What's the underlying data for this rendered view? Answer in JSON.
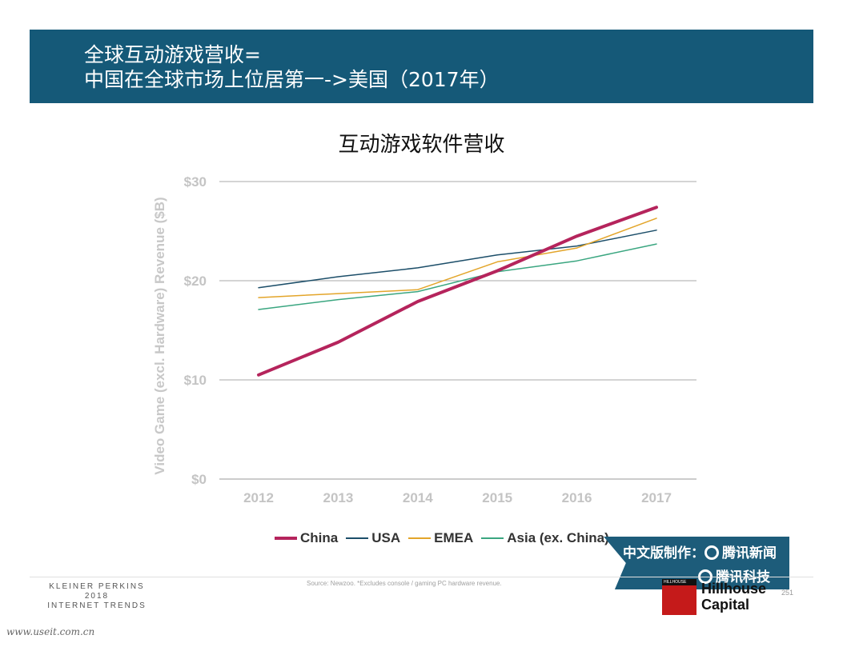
{
  "slide": {
    "title_line1": "全球互动游戏营收=",
    "title_line2": "中国在全球市场上位居第一->美国（2017年）",
    "source": "Source: Newzoo. *Excludes console / gaming PC hardware revenue.",
    "page_number": "251",
    "site": "www.useit.com.cn",
    "kp_logo": [
      "KLEINER PERKINS",
      "2018",
      "INTERNET TRENDS"
    ],
    "hillhouse": {
      "small": "HILLHOUSE",
      "name_line1": "Hillhouse",
      "name_line2": "Capital"
    },
    "banner": {
      "line1_prefix": "中文版制作：",
      "line1_brand": "腾讯新闻",
      "line2_brand": "腾讯科技"
    },
    "colors": {
      "header_bg": "#155978",
      "banner_bg": "#1d5c7a"
    }
  },
  "chart_data": {
    "type": "line",
    "title": "互动游戏软件营收",
    "xlabel": "",
    "ylabel": "Video Game (excl. Hardware) Revenue ($B)",
    "categories": [
      "2012",
      "2013",
      "2014",
      "2015",
      "2016",
      "2017"
    ],
    "ylim": [
      0,
      30
    ],
    "yticks": [
      {
        "value": 0,
        "label": "$0"
      },
      {
        "value": 10,
        "label": "$10"
      },
      {
        "value": 20,
        "label": "$20"
      },
      {
        "value": 30,
        "label": "$30"
      }
    ],
    "grid": true,
    "legend_position": "bottom",
    "series": [
      {
        "name": "China",
        "color": "#b5245c",
        "width": 4,
        "values": [
          10.5,
          13.8,
          17.9,
          21.0,
          24.5,
          27.4
        ]
      },
      {
        "name": "USA",
        "color": "#1c4e69",
        "width": 1.5,
        "values": [
          19.3,
          20.4,
          21.3,
          22.6,
          23.5,
          25.1
        ]
      },
      {
        "name": "EMEA",
        "color": "#e3a52a",
        "width": 1.5,
        "values": [
          18.3,
          18.7,
          19.1,
          21.9,
          23.3,
          26.3
        ]
      },
      {
        "name": "Asia (ex. China)",
        "color": "#3aa680",
        "width": 1.5,
        "values": [
          17.1,
          18.1,
          18.9,
          20.9,
          22.0,
          23.7
        ]
      }
    ]
  }
}
